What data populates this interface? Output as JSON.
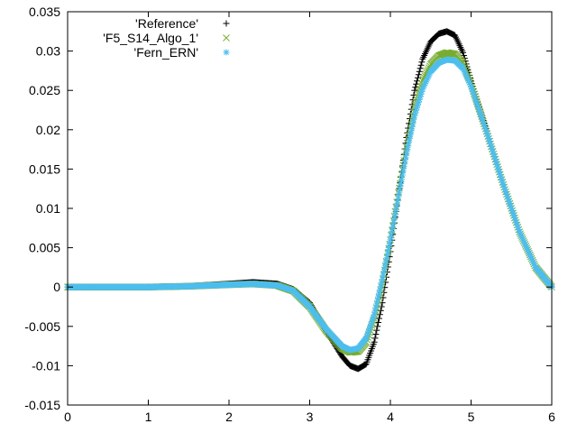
{
  "chart_data": {
    "type": "scatter",
    "xlim": [
      0,
      6
    ],
    "ylim": [
      -0.015,
      0.035
    ],
    "x_ticks": [
      "0",
      "1",
      "2",
      "3",
      "4",
      "5",
      "6"
    ],
    "y_ticks": [
      "-0.015",
      "-0.01",
      "-0.005",
      "0",
      "0.005",
      "0.01",
      "0.015",
      "0.02",
      "0.025",
      "0.03",
      "0.035"
    ],
    "grid": false,
    "legend_position": "top-left",
    "series": [
      {
        "name": "'Reference'",
        "marker": "plus",
        "color": "#000000",
        "points": [
          [
            0,
            0
          ],
          [
            0.5,
            0
          ],
          [
            1.0,
            0
          ],
          [
            1.5,
            0.0001
          ],
          [
            2.0,
            0.0004
          ],
          [
            2.3,
            0.0006
          ],
          [
            2.6,
            0.0004
          ],
          [
            2.8,
            -0.0003
          ],
          [
            3.0,
            -0.002
          ],
          [
            3.2,
            -0.0055
          ],
          [
            3.4,
            -0.0088
          ],
          [
            3.5,
            -0.01
          ],
          [
            3.6,
            -0.0104
          ],
          [
            3.7,
            -0.0098
          ],
          [
            3.8,
            -0.007
          ],
          [
            3.9,
            -0.002
          ],
          [
            4.0,
            0.0045
          ],
          [
            4.1,
            0.0118
          ],
          [
            4.2,
            0.019
          ],
          [
            4.3,
            0.025
          ],
          [
            4.4,
            0.029
          ],
          [
            4.5,
            0.0312
          ],
          [
            4.6,
            0.0322
          ],
          [
            4.7,
            0.0325
          ],
          [
            4.8,
            0.032
          ],
          [
            4.9,
            0.0298
          ],
          [
            5.0,
            0.0262
          ],
          [
            5.2,
            0.0195
          ],
          [
            5.4,
            0.013
          ],
          [
            5.6,
            0.007
          ],
          [
            5.8,
            0.0025
          ],
          [
            6.0,
            0.0
          ]
        ]
      },
      {
        "name": "'F5_S14_Algo_1'",
        "marker": "cross",
        "color": "#77ac30",
        "points": [
          [
            0,
            0
          ],
          [
            0.5,
            0
          ],
          [
            1.0,
            0
          ],
          [
            1.5,
            0.0001
          ],
          [
            2.0,
            0.0003
          ],
          [
            2.3,
            0.0004
          ],
          [
            2.6,
            0.0002
          ],
          [
            2.8,
            -0.0005
          ],
          [
            3.0,
            -0.0025
          ],
          [
            3.2,
            -0.0055
          ],
          [
            3.4,
            -0.0078
          ],
          [
            3.5,
            -0.0083
          ],
          [
            3.6,
            -0.0082
          ],
          [
            3.7,
            -0.007
          ],
          [
            3.8,
            -0.004
          ],
          [
            3.9,
            0.0005
          ],
          [
            4.0,
            0.006
          ],
          [
            4.1,
            0.012
          ],
          [
            4.2,
            0.0178
          ],
          [
            4.3,
            0.0228
          ],
          [
            4.4,
            0.0262
          ],
          [
            4.5,
            0.0283
          ],
          [
            4.6,
            0.0294
          ],
          [
            4.7,
            0.0298
          ],
          [
            4.8,
            0.0296
          ],
          [
            4.9,
            0.0285
          ],
          [
            5.0,
            0.0258
          ],
          [
            5.2,
            0.0195
          ],
          [
            5.4,
            0.013
          ],
          [
            5.6,
            0.007
          ],
          [
            5.8,
            0.0025
          ],
          [
            6.0,
            0.0
          ]
        ]
      },
      {
        "name": "'Fern_ERN'",
        "marker": "star",
        "color": "#4dbeee",
        "points": [
          [
            0,
            0
          ],
          [
            0.5,
            0
          ],
          [
            1.0,
            0
          ],
          [
            1.5,
            0.0001
          ],
          [
            2.0,
            0.0003
          ],
          [
            2.3,
            0.0004
          ],
          [
            2.6,
            0.0002
          ],
          [
            2.8,
            -0.0005
          ],
          [
            3.0,
            -0.0025
          ],
          [
            3.2,
            -0.0053
          ],
          [
            3.4,
            -0.0075
          ],
          [
            3.5,
            -0.008
          ],
          [
            3.6,
            -0.0078
          ],
          [
            3.7,
            -0.0065
          ],
          [
            3.8,
            -0.0035
          ],
          [
            3.9,
            0.001
          ],
          [
            4.0,
            0.006
          ],
          [
            4.1,
            0.0115
          ],
          [
            4.2,
            0.017
          ],
          [
            4.3,
            0.0218
          ],
          [
            4.4,
            0.0252
          ],
          [
            4.5,
            0.0274
          ],
          [
            4.6,
            0.0285
          ],
          [
            4.7,
            0.0289
          ],
          [
            4.8,
            0.0288
          ],
          [
            4.9,
            0.0278
          ],
          [
            5.0,
            0.0255
          ],
          [
            5.2,
            0.0195
          ],
          [
            5.4,
            0.013
          ],
          [
            5.6,
            0.007
          ],
          [
            5.8,
            0.0025
          ],
          [
            6.0,
            0.0
          ]
        ]
      }
    ]
  }
}
